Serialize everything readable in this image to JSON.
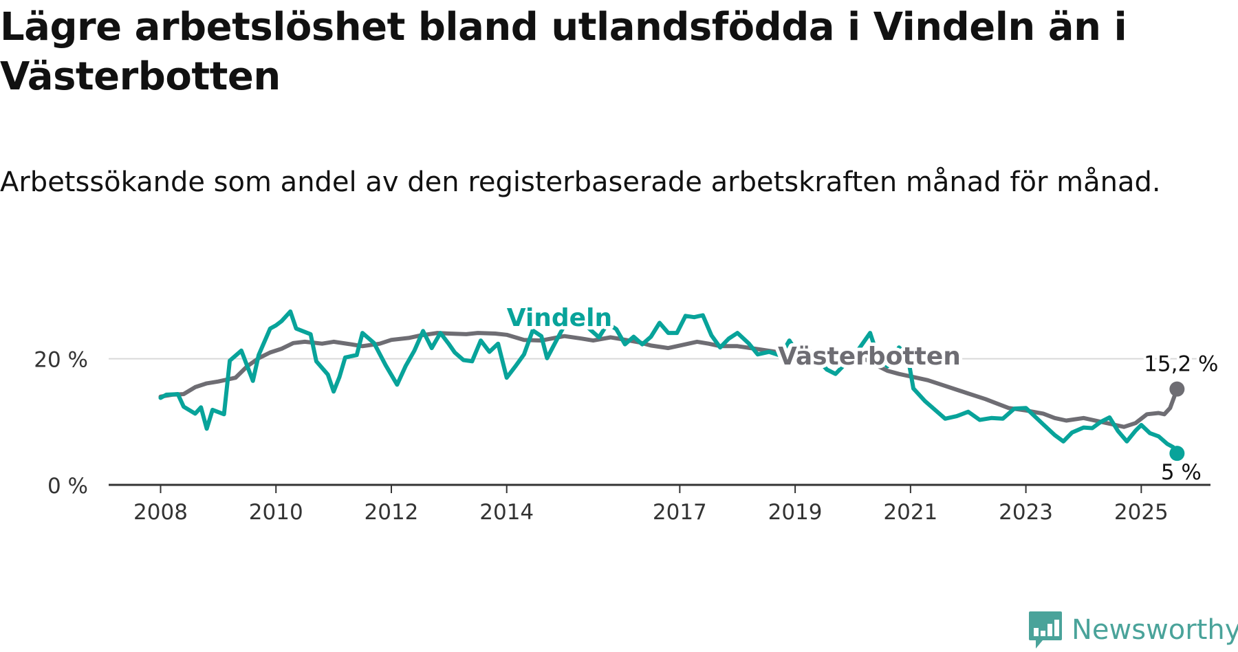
{
  "title": "Lägre arbetslöshet bland utlandsfödda i Vindeln än i Västerbotten",
  "subtitle": "Arbetssökande som andel av den registerbaserade arbetskraften månad för månad.",
  "brand": {
    "name": "Newsworthy",
    "logo_icon": "bar-chart-speech-bubble-icon",
    "color": "#4aa39a"
  },
  "chart_data": {
    "type": "line",
    "title": "Lägre arbetslöshet bland utlandsfödda i Vindeln än i Västerbotten",
    "subtitle": "Arbetssökande som andel av den registerbaserade arbetskraften månad för månad.",
    "xlabel": "",
    "ylabel": "",
    "xlim": [
      2007.1,
      2026.2
    ],
    "ylim": [
      0,
      30
    ],
    "x_ticks": [
      {
        "value": 2008,
        "label": "2008"
      },
      {
        "value": 2010,
        "label": "2010"
      },
      {
        "value": 2012,
        "label": "2012"
      },
      {
        "value": 2014,
        "label": "2014"
      },
      {
        "value": 2017,
        "label": "2017"
      },
      {
        "value": 2019,
        "label": "2019"
      },
      {
        "value": 2021,
        "label": "2021"
      },
      {
        "value": 2023,
        "label": "2023"
      },
      {
        "value": 2025,
        "label": "2025"
      }
    ],
    "y_ticks": [
      {
        "value": 0,
        "label": "0 %"
      },
      {
        "value": 20,
        "label": "20 %"
      }
    ],
    "grid": "horizontal",
    "series": [
      {
        "name": "Västerbotten",
        "color": "#6e6d73",
        "end_label": "15,2 %",
        "points": [
          [
            2008.0,
            14.0
          ],
          [
            2008.2,
            14.3
          ],
          [
            2008.4,
            14.4
          ],
          [
            2008.6,
            15.5
          ],
          [
            2008.8,
            16.1
          ],
          [
            2009.0,
            16.4
          ],
          [
            2009.3,
            17.0
          ],
          [
            2009.5,
            18.8
          ],
          [
            2009.7,
            20.1
          ],
          [
            2009.9,
            21.0
          ],
          [
            2010.1,
            21.6
          ],
          [
            2010.3,
            22.5
          ],
          [
            2010.5,
            22.7
          ],
          [
            2010.8,
            22.4
          ],
          [
            2011.0,
            22.7
          ],
          [
            2011.3,
            22.3
          ],
          [
            2011.5,
            22.0
          ],
          [
            2011.8,
            22.4
          ],
          [
            2012.0,
            23.0
          ],
          [
            2012.3,
            23.3
          ],
          [
            2012.5,
            23.7
          ],
          [
            2012.8,
            24.1
          ],
          [
            2013.0,
            24.0
          ],
          [
            2013.3,
            23.9
          ],
          [
            2013.5,
            24.1
          ],
          [
            2013.8,
            24.0
          ],
          [
            2014.0,
            23.8
          ],
          [
            2014.3,
            23.0
          ],
          [
            2014.6,
            22.9
          ],
          [
            2015.0,
            23.6
          ],
          [
            2015.3,
            23.2
          ],
          [
            2015.5,
            22.9
          ],
          [
            2015.8,
            23.4
          ],
          [
            2016.0,
            23.1
          ],
          [
            2016.3,
            22.6
          ],
          [
            2016.5,
            22.1
          ],
          [
            2016.8,
            21.7
          ],
          [
            2017.0,
            22.1
          ],
          [
            2017.3,
            22.7
          ],
          [
            2017.5,
            22.4
          ],
          [
            2017.7,
            22.0
          ],
          [
            2018.0,
            22.0
          ],
          [
            2018.3,
            21.6
          ],
          [
            2018.6,
            21.2
          ],
          [
            2019.0,
            20.6
          ],
          [
            2019.3,
            20.2
          ],
          [
            2019.6,
            20.7
          ],
          [
            2019.9,
            20.4
          ],
          [
            2020.2,
            20.0
          ],
          [
            2020.4,
            19.0
          ],
          [
            2020.6,
            18.1
          ],
          [
            2020.8,
            17.6
          ],
          [
            2021.0,
            17.2
          ],
          [
            2021.3,
            16.6
          ],
          [
            2021.5,
            16.0
          ],
          [
            2021.8,
            15.1
          ],
          [
            2022.0,
            14.5
          ],
          [
            2022.3,
            13.6
          ],
          [
            2022.5,
            12.9
          ],
          [
            2022.7,
            12.2
          ],
          [
            2023.0,
            11.8
          ],
          [
            2023.3,
            11.3
          ],
          [
            2023.5,
            10.6
          ],
          [
            2023.7,
            10.2
          ],
          [
            2024.0,
            10.6
          ],
          [
            2024.3,
            10.0
          ],
          [
            2024.5,
            9.6
          ],
          [
            2024.7,
            9.2
          ],
          [
            2024.9,
            9.8
          ],
          [
            2025.1,
            11.2
          ],
          [
            2025.3,
            11.4
          ],
          [
            2025.4,
            11.2
          ],
          [
            2025.5,
            12.2
          ],
          [
            2025.62,
            15.2
          ]
        ]
      },
      {
        "name": "Vindeln",
        "color": "#08a39a",
        "end_label": "5 %",
        "points": [
          [
            2008.0,
            13.8
          ],
          [
            2008.1,
            14.3
          ],
          [
            2008.3,
            14.4
          ],
          [
            2008.4,
            12.4
          ],
          [
            2008.6,
            11.3
          ],
          [
            2008.7,
            12.3
          ],
          [
            2008.8,
            8.9
          ],
          [
            2008.9,
            11.9
          ],
          [
            2009.1,
            11.2
          ],
          [
            2009.2,
            19.7
          ],
          [
            2009.4,
            21.3
          ],
          [
            2009.6,
            16.5
          ],
          [
            2009.7,
            20.6
          ],
          [
            2009.9,
            24.8
          ],
          [
            2010.0,
            25.3
          ],
          [
            2010.1,
            26.0
          ],
          [
            2010.25,
            27.5
          ],
          [
            2010.35,
            24.8
          ],
          [
            2010.6,
            23.9
          ],
          [
            2010.7,
            19.6
          ],
          [
            2010.9,
            17.5
          ],
          [
            2011.0,
            14.8
          ],
          [
            2011.1,
            17.1
          ],
          [
            2011.2,
            20.2
          ],
          [
            2011.4,
            20.6
          ],
          [
            2011.5,
            24.1
          ],
          [
            2011.7,
            22.5
          ],
          [
            2011.9,
            19.0
          ],
          [
            2012.1,
            15.9
          ],
          [
            2012.25,
            18.9
          ],
          [
            2012.4,
            21.3
          ],
          [
            2012.55,
            24.4
          ],
          [
            2012.7,
            21.7
          ],
          [
            2012.85,
            24.1
          ],
          [
            2013.0,
            22.3
          ],
          [
            2013.1,
            21.0
          ],
          [
            2013.25,
            19.8
          ],
          [
            2013.4,
            19.6
          ],
          [
            2013.55,
            22.9
          ],
          [
            2013.7,
            21.1
          ],
          [
            2013.85,
            22.4
          ],
          [
            2014.0,
            17.0
          ],
          [
            2014.15,
            18.8
          ],
          [
            2014.3,
            20.7
          ],
          [
            2014.45,
            24.5
          ],
          [
            2014.6,
            23.6
          ],
          [
            2014.7,
            20.1
          ],
          [
            2014.85,
            22.7
          ],
          [
            2015.0,
            25.3
          ],
          [
            2015.15,
            27.2
          ],
          [
            2015.3,
            26.1
          ],
          [
            2015.45,
            24.6
          ],
          [
            2015.6,
            23.4
          ],
          [
            2015.75,
            25.6
          ],
          [
            2015.9,
            24.7
          ],
          [
            2016.05,
            22.3
          ],
          [
            2016.2,
            23.5
          ],
          [
            2016.35,
            22.3
          ],
          [
            2016.5,
            23.5
          ],
          [
            2016.65,
            25.7
          ],
          [
            2016.8,
            24.1
          ],
          [
            2016.95,
            24.1
          ],
          [
            2017.1,
            26.8
          ],
          [
            2017.25,
            26.6
          ],
          [
            2017.4,
            26.9
          ],
          [
            2017.55,
            23.7
          ],
          [
            2017.7,
            21.8
          ],
          [
            2017.85,
            23.2
          ],
          [
            2018.0,
            24.1
          ],
          [
            2018.2,
            22.4
          ],
          [
            2018.35,
            20.7
          ],
          [
            2018.55,
            21.1
          ],
          [
            2018.75,
            20.5
          ],
          [
            2018.9,
            22.9
          ],
          [
            2019.05,
            20.7
          ],
          [
            2019.2,
            21.7
          ],
          [
            2019.4,
            19.8
          ],
          [
            2019.55,
            18.3
          ],
          [
            2019.7,
            17.6
          ],
          [
            2019.9,
            19.5
          ],
          [
            2020.1,
            21.5
          ],
          [
            2020.3,
            24.1
          ],
          [
            2020.45,
            19.9
          ],
          [
            2020.6,
            18.8
          ],
          [
            2020.8,
            21.8
          ],
          [
            2020.95,
            20.5
          ],
          [
            2021.05,
            15.3
          ],
          [
            2021.25,
            13.3
          ],
          [
            2021.4,
            12.1
          ],
          [
            2021.6,
            10.5
          ],
          [
            2021.8,
            10.9
          ],
          [
            2022.0,
            11.6
          ],
          [
            2022.2,
            10.3
          ],
          [
            2022.4,
            10.6
          ],
          [
            2022.6,
            10.5
          ],
          [
            2022.8,
            12.1
          ],
          [
            2023.0,
            12.2
          ],
          [
            2023.15,
            10.9
          ],
          [
            2023.3,
            9.6
          ],
          [
            2023.5,
            7.9
          ],
          [
            2023.65,
            6.9
          ],
          [
            2023.8,
            8.3
          ],
          [
            2024.0,
            9.1
          ],
          [
            2024.15,
            9.0
          ],
          [
            2024.3,
            10.0
          ],
          [
            2024.45,
            10.7
          ],
          [
            2024.6,
            8.5
          ],
          [
            2024.75,
            6.9
          ],
          [
            2024.9,
            8.6
          ],
          [
            2025.0,
            9.5
          ],
          [
            2025.15,
            8.2
          ],
          [
            2025.3,
            7.7
          ],
          [
            2025.45,
            6.5
          ],
          [
            2025.55,
            6.0
          ],
          [
            2025.62,
            5.0
          ]
        ]
      }
    ],
    "line_labels": [
      {
        "series": "Vindeln",
        "text": "Vindeln",
        "at": [
          2014.0,
          25.2
        ]
      },
      {
        "series": "Västerbotten",
        "text": "Västerbotten",
        "at": [
          2018.7,
          19.1
        ]
      }
    ]
  }
}
